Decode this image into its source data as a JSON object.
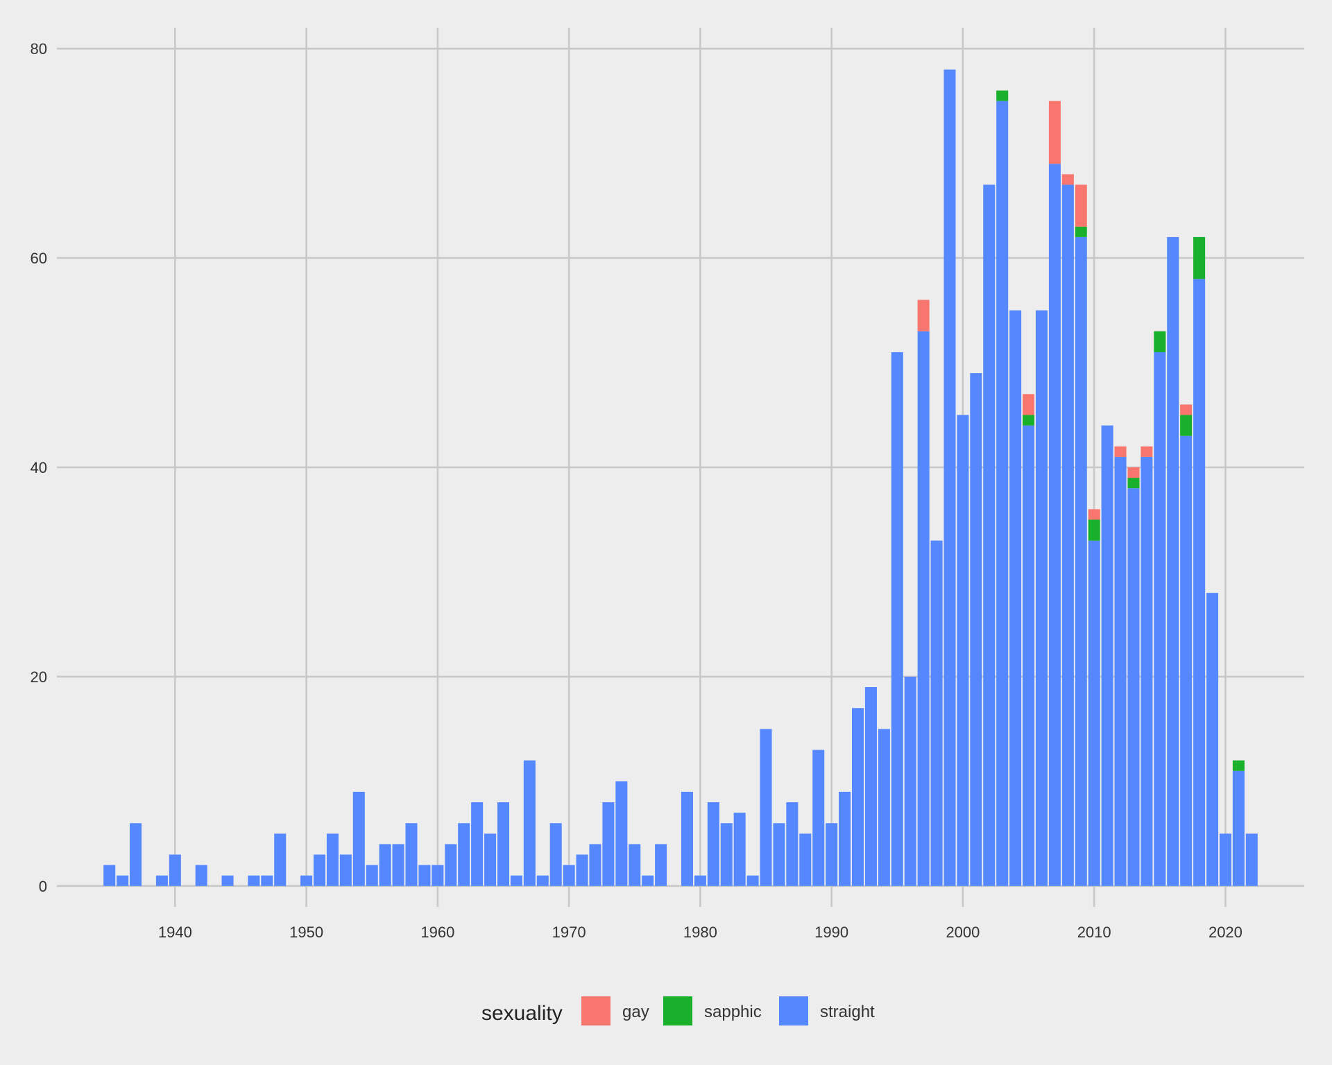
{
  "chart_data": {
    "type": "bar",
    "stacked": true,
    "title": "",
    "xlabel": "",
    "ylabel": "",
    "xlim": [
      1931,
      2026
    ],
    "ylim": [
      -2,
      82
    ],
    "x_ticks": [
      1940,
      1950,
      1960,
      1970,
      1980,
      1990,
      2000,
      2010,
      2020
    ],
    "y_ticks": [
      0,
      20,
      40,
      60,
      80
    ],
    "grid": true,
    "legend": {
      "title": "sexuality",
      "position": "bottom",
      "entries": [
        "gay",
        "sapphic",
        "straight"
      ]
    },
    "colors": {
      "gay": "#F8766D",
      "sapphic": "#19B02B",
      "straight": "#5588FF"
    },
    "stack_order": [
      "straight",
      "sapphic",
      "gay"
    ],
    "series": [
      {
        "name": "straight",
        "data": [
          [
            1935,
            2
          ],
          [
            1936,
            1
          ],
          [
            1937,
            6
          ],
          [
            1939,
            1
          ],
          [
            1940,
            3
          ],
          [
            1942,
            2
          ],
          [
            1944,
            1
          ],
          [
            1946,
            1
          ],
          [
            1947,
            1
          ],
          [
            1948,
            5
          ],
          [
            1950,
            1
          ],
          [
            1951,
            3
          ],
          [
            1952,
            5
          ],
          [
            1953,
            3
          ],
          [
            1954,
            9
          ],
          [
            1955,
            2
          ],
          [
            1956,
            4
          ],
          [
            1957,
            4
          ],
          [
            1958,
            6
          ],
          [
            1959,
            2
          ],
          [
            1960,
            2
          ],
          [
            1961,
            4
          ],
          [
            1962,
            6
          ],
          [
            1963,
            8
          ],
          [
            1964,
            5
          ],
          [
            1965,
            8
          ],
          [
            1966,
            1
          ],
          [
            1967,
            12
          ],
          [
            1968,
            1
          ],
          [
            1969,
            6
          ],
          [
            1970,
            2
          ],
          [
            1971,
            3
          ],
          [
            1972,
            4
          ],
          [
            1973,
            8
          ],
          [
            1974,
            10
          ],
          [
            1975,
            4
          ],
          [
            1976,
            1
          ],
          [
            1977,
            4
          ],
          [
            1979,
            9
          ],
          [
            1980,
            1
          ],
          [
            1981,
            8
          ],
          [
            1982,
            6
          ],
          [
            1983,
            7
          ],
          [
            1984,
            1
          ],
          [
            1985,
            15
          ],
          [
            1986,
            6
          ],
          [
            1987,
            8
          ],
          [
            1988,
            5
          ],
          [
            1989,
            13
          ],
          [
            1990,
            6
          ],
          [
            1991,
            9
          ],
          [
            1992,
            17
          ],
          [
            1993,
            19
          ],
          [
            1994,
            15
          ],
          [
            1995,
            51
          ],
          [
            1996,
            20
          ],
          [
            1997,
            53
          ],
          [
            1998,
            33
          ],
          [
            1999,
            78
          ],
          [
            2000,
            45
          ],
          [
            2001,
            49
          ],
          [
            2002,
            67
          ],
          [
            2003,
            75
          ],
          [
            2004,
            55
          ],
          [
            2005,
            44
          ],
          [
            2006,
            55
          ],
          [
            2007,
            69
          ],
          [
            2008,
            67
          ],
          [
            2009,
            62
          ],
          [
            2010,
            33
          ],
          [
            2011,
            44
          ],
          [
            2012,
            41
          ],
          [
            2013,
            38
          ],
          [
            2014,
            41
          ],
          [
            2015,
            51
          ],
          [
            2016,
            62
          ],
          [
            2017,
            43
          ],
          [
            2018,
            58
          ],
          [
            2019,
            28
          ],
          [
            2020,
            5
          ],
          [
            2021,
            11
          ],
          [
            2022,
            5
          ]
        ]
      },
      {
        "name": "sapphic",
        "data": [
          [
            2003,
            1
          ],
          [
            2005,
            1
          ],
          [
            2009,
            1
          ],
          [
            2010,
            2
          ],
          [
            2013,
            1
          ],
          [
            2015,
            2
          ],
          [
            2017,
            2
          ],
          [
            2018,
            4
          ],
          [
            2021,
            1
          ]
        ]
      },
      {
        "name": "gay",
        "data": [
          [
            1997,
            3
          ],
          [
            2005,
            2
          ],
          [
            2007,
            6
          ],
          [
            2008,
            1
          ],
          [
            2009,
            4
          ],
          [
            2010,
            1
          ],
          [
            2012,
            1
          ],
          [
            2013,
            1
          ],
          [
            2014,
            1
          ],
          [
            2017,
            1
          ]
        ]
      }
    ]
  }
}
